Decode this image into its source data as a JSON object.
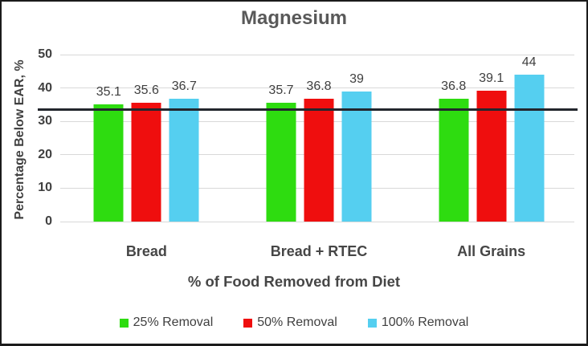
{
  "chart_data": {
    "type": "bar",
    "title": "Magnesium",
    "categories": [
      "Bread",
      "Bread + RTEC",
      "All Grains"
    ],
    "series": [
      {
        "name": "25% Removal",
        "color": "#2edc10",
        "values": [
          35.1,
          35.7,
          36.8
        ],
        "labels": [
          "35.1",
          "35.7",
          "36.8"
        ]
      },
      {
        "name": "50% Removal",
        "color": "#ef0e0e",
        "values": [
          35.6,
          36.8,
          39.1
        ],
        "labels": [
          "35.6",
          "36.8",
          "39.1"
        ]
      },
      {
        "name": "100% Removal",
        "color": "#55cff0",
        "values": [
          36.7,
          39.0,
          44.0
        ],
        "labels": [
          "36.7",
          "39",
          "44"
        ]
      }
    ],
    "xlabel": "% of Food Removed from Diet",
    "ylabel": "Percentage Below EAR, %",
    "ylim": [
      0,
      50
    ],
    "yticks": [
      0,
      10,
      20,
      30,
      40,
      50
    ],
    "reference_line": 33.5,
    "grid": true,
    "legend_position": "bottom",
    "colors": {
      "title_text": "#595959",
      "axis_text": "#404040",
      "gridline": "#d8d8d8",
      "reference_line": "#23262d",
      "border": "#1b1b1b"
    }
  }
}
